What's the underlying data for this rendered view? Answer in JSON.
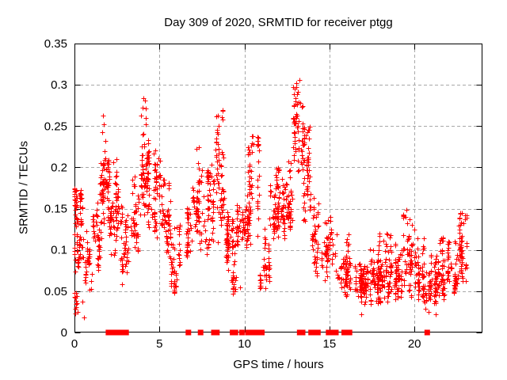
{
  "chart_data": {
    "type": "scatter",
    "title": "Day 309 of 2020, SRMTID for receiver ptgg",
    "xlabel": "GPS time / hours",
    "ylabel": "SRMTID / TECUs",
    "xlim": [
      0,
      24
    ],
    "ylim": [
      0,
      0.35
    ],
    "xticks": {
      "values": [
        0,
        5,
        10,
        15,
        20
      ],
      "labels": [
        "0",
        "5",
        "10",
        "15",
        "20"
      ]
    },
    "yticks": {
      "values": [
        0,
        0.05,
        0.1,
        0.15,
        0.2,
        0.25,
        0.3,
        0.35
      ],
      "labels": [
        "0",
        "0.05",
        "0.1",
        "0.15",
        "0.2",
        "0.25",
        "0.3",
        "0.35"
      ]
    },
    "grid": true,
    "legend": "none",
    "marker": {
      "shape": "plus",
      "size": 7,
      "color": "#ff0000"
    },
    "colors": {
      "marker": "#ff0000",
      "grid": "#a8a8a8",
      "axis": "#000000",
      "background": "#ffffff"
    },
    "encoding_note": "dense scatter approximated by vertical-streak clusters read from the plot envelope",
    "point_clusters": [
      [
        0.0,
        0.45,
        80,
        0.07,
        0.175
      ],
      [
        0.05,
        0.95,
        12,
        0.018,
        0.062
      ],
      [
        0.45,
        1.1,
        35,
        0.045,
        0.13
      ],
      [
        1.1,
        1.55,
        40,
        0.07,
        0.16
      ],
      [
        1.55,
        2.0,
        60,
        0.1,
        0.265
      ],
      [
        2.0,
        2.65,
        80,
        0.08,
        0.21
      ],
      [
        2.65,
        3.4,
        50,
        0.055,
        0.155
      ],
      [
        3.4,
        3.85,
        40,
        0.09,
        0.2
      ],
      [
        3.85,
        4.35,
        65,
        0.13,
        0.285
      ],
      [
        4.35,
        5.05,
        70,
        0.1,
        0.225
      ],
      [
        5.05,
        5.65,
        50,
        0.09,
        0.185
      ],
      [
        5.65,
        6.35,
        50,
        0.04,
        0.13
      ],
      [
        6.35,
        6.9,
        35,
        0.065,
        0.155
      ],
      [
        6.9,
        7.45,
        50,
        0.095,
        0.225
      ],
      [
        7.45,
        8.25,
        65,
        0.09,
        0.205
      ],
      [
        8.25,
        8.95,
        60,
        0.1,
        0.27
      ],
      [
        8.95,
        9.55,
        60,
        0.075,
        0.145
      ],
      [
        9.2,
        9.95,
        20,
        0.04,
        0.085
      ],
      [
        9.55,
        10.15,
        55,
        0.1,
        0.155
      ],
      [
        10.15,
        10.95,
        70,
        0.1,
        0.24
      ],
      [
        10.95,
        11.5,
        40,
        0.05,
        0.13
      ],
      [
        11.5,
        12.2,
        65,
        0.11,
        0.2
      ],
      [
        12.2,
        12.9,
        65,
        0.1,
        0.21
      ],
      [
        12.9,
        13.45,
        60,
        0.17,
        0.307
      ],
      [
        13.45,
        13.95,
        55,
        0.13,
        0.25
      ],
      [
        13.95,
        14.6,
        50,
        0.05,
        0.165
      ],
      [
        14.6,
        15.25,
        50,
        0.06,
        0.155
      ],
      [
        15.25,
        16.2,
        60,
        0.035,
        0.12
      ],
      [
        16.2,
        17.3,
        100,
        0.025,
        0.085
      ],
      [
        17.3,
        17.9,
        70,
        0.03,
        0.105
      ],
      [
        17.9,
        18.7,
        80,
        0.03,
        0.12
      ],
      [
        18.7,
        19.3,
        60,
        0.035,
        0.11
      ],
      [
        19.3,
        19.9,
        55,
        0.04,
        0.155
      ],
      [
        19.9,
        20.6,
        60,
        0.03,
        0.115
      ],
      [
        20.6,
        21.3,
        60,
        0.02,
        0.095
      ],
      [
        21.3,
        22.0,
        60,
        0.035,
        0.12
      ],
      [
        22.0,
        22.55,
        50,
        0.04,
        0.11
      ],
      [
        22.55,
        23.1,
        55,
        0.045,
        0.145
      ]
    ],
    "extra_points": [
      [
        13.25,
        0.305
      ],
      [
        13.18,
        0.291
      ],
      [
        13.3,
        0.278
      ],
      [
        13.12,
        0.262
      ],
      [
        4.08,
        0.283
      ],
      [
        4.02,
        0.272
      ],
      [
        3.96,
        0.262
      ],
      [
        1.7,
        0.262
      ],
      [
        1.74,
        0.252
      ],
      [
        1.66,
        0.242
      ],
      [
        8.45,
        0.262
      ],
      [
        8.52,
        0.25
      ],
      [
        8.4,
        0.242
      ],
      [
        10.5,
        0.237
      ],
      [
        10.55,
        0.228
      ],
      [
        10.45,
        0.218
      ],
      [
        13.55,
        0.248
      ],
      [
        13.62,
        0.238
      ],
      [
        19.55,
        0.148
      ],
      [
        19.5,
        0.14
      ],
      [
        19.6,
        0.132
      ],
      [
        22.7,
        0.143
      ],
      [
        22.75,
        0.133
      ],
      [
        22.66,
        0.124
      ],
      [
        20.02,
        0.124
      ],
      [
        17.42,
        0.1
      ],
      [
        18.45,
        0.118
      ],
      [
        21.68,
        0.115
      ],
      [
        0.2,
        0.024
      ],
      [
        0.48,
        0.037
      ],
      [
        0.57,
        0.018
      ],
      [
        0.66,
        0.06
      ],
      [
        0.9,
        0.051
      ],
      [
        16.9,
        0.022
      ],
      [
        20.85,
        0.024
      ],
      [
        23.02,
        0.137
      ],
      [
        12.62,
        0.207
      ],
      [
        7.18,
        0.222
      ],
      [
        5.25,
        0.185
      ],
      [
        2.32,
        0.206
      ],
      [
        9.02,
        0.145
      ],
      [
        14.12,
        0.163
      ],
      [
        6.02,
        0.127
      ],
      [
        0.1,
        0.172
      ],
      [
        11.92,
        0.198
      ]
    ],
    "zero_marker_hours": [
      2.0,
      2.1,
      2.32,
      2.4,
      2.48,
      2.56,
      2.64,
      2.72,
      2.8,
      2.88,
      2.96,
      3.04,
      6.7,
      7.42,
      8.2,
      8.38,
      9.3,
      9.47,
      9.85,
      10.2,
      10.35,
      10.55,
      10.85,
      11.02,
      13.25,
      13.42,
      13.92,
      14.06,
      14.32,
      14.95,
      15.06,
      15.25,
      15.38,
      15.87,
      16.18,
      20.75
    ]
  }
}
